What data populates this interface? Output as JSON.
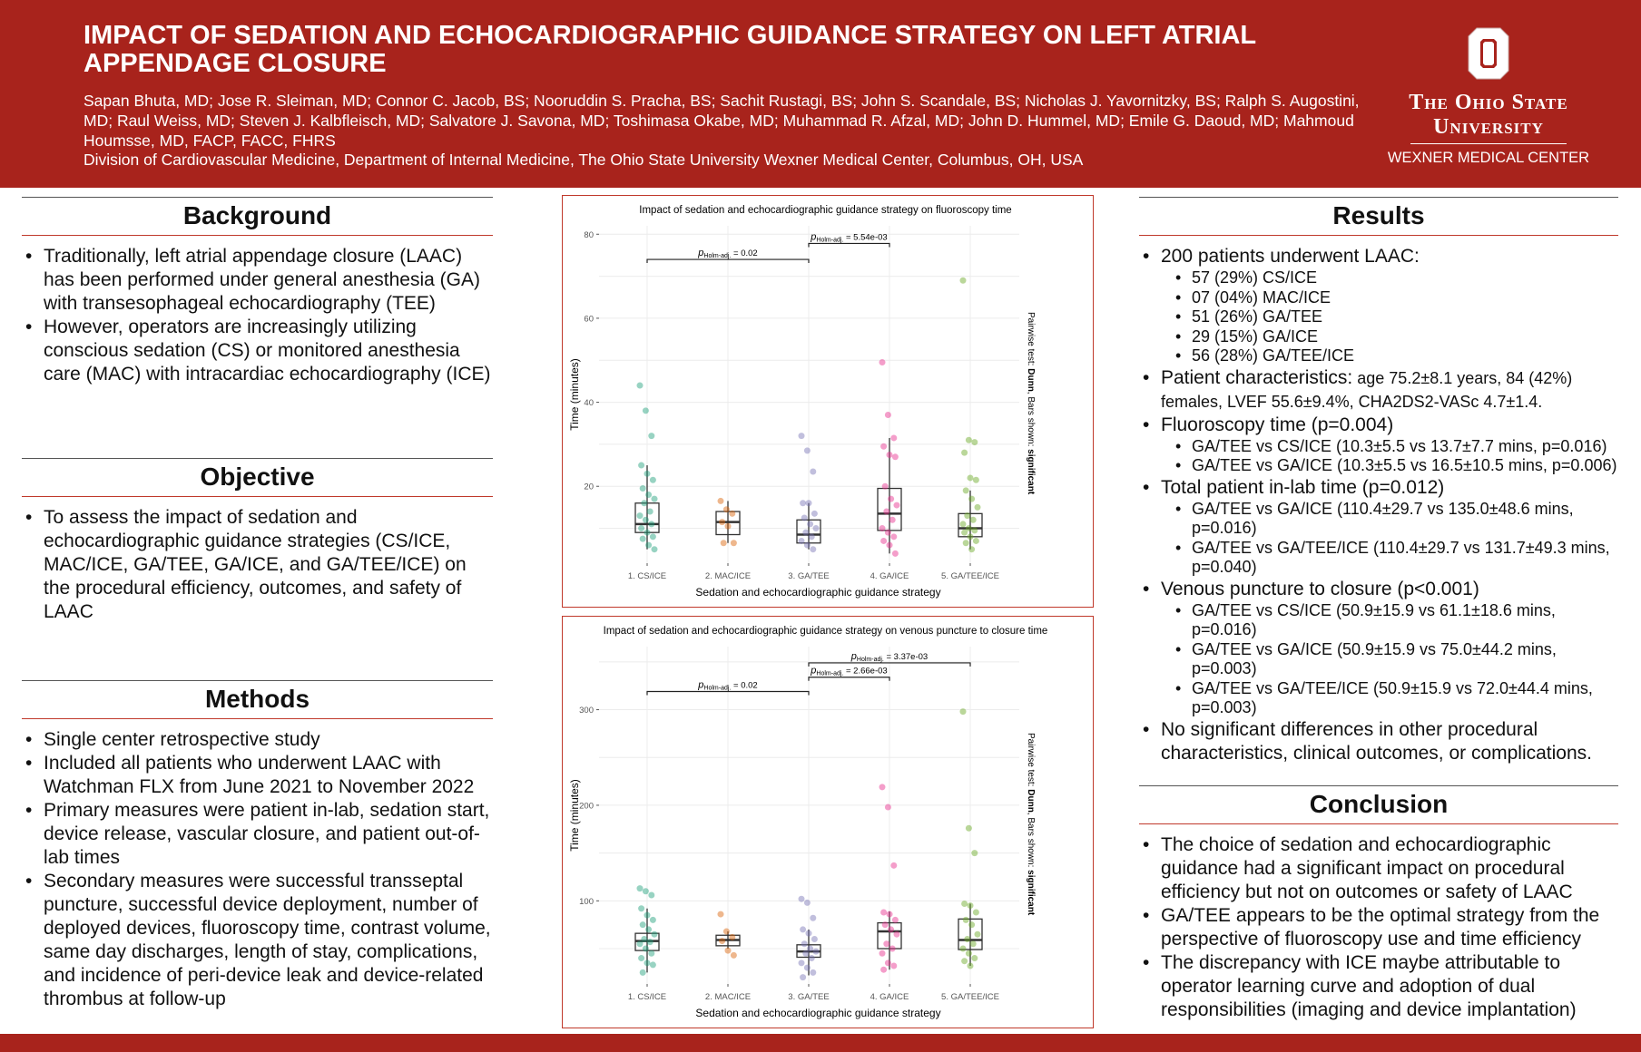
{
  "header": {
    "title": "IMPACT OF SEDATION AND ECHOCARDIOGRAPHIC GUIDANCE STRATEGY ON LEFT ATRIAL APPENDAGE CLOSURE",
    "authors": "Sapan Bhuta, MD; Jose R. Sleiman, MD; Connor C. Jacob, BS; Nooruddin S. Pracha, BS; Sachit Rustagi, BS; John S. Scandale, BS; Nicholas J. Yavornitzky, BS; Ralph S. Augostini, MD; Raul Weiss, MD; Steven J. Kalbfleisch, MD; Salvatore J. Savona, MD; Toshimasa Okabe, MD; Muhammad R. Afzal, MD; John D. Hummel, MD; Emile G. Daoud, MD; Mahmoud Houmsse, MD, FACP, FACC, FHRS",
    "affiliation": "Division of Cardiovascular Medicine, Department of Internal Medicine, The Ohio State University Wexner Medical Center, Columbus, OH, USA",
    "logo": {
      "line1": "The Ohio State",
      "line2": "University",
      "line3": "WEXNER MEDICAL CENTER"
    },
    "brand_color": "#A8231C"
  },
  "background": {
    "heading": "Background",
    "items": [
      "Traditionally, left atrial appendage closure (LAAC) has been performed under general anesthesia (GA) with transesophageal echocardiography (TEE)",
      "However, operators are increasingly utilizing conscious sedation (CS) or monitored anesthesia care (MAC) with intracardiac echocardiography (ICE)"
    ]
  },
  "objective": {
    "heading": "Objective",
    "items": [
      "To assess the impact of sedation and echocardiographic guidance strategies (CS/ICE, MAC/ICE, GA/TEE, GA/ICE, and GA/TEE/ICE) on the procedural efficiency, outcomes, and safety of LAAC"
    ]
  },
  "methods": {
    "heading": "Methods",
    "items": [
      "Single center retrospective study",
      "Included all patients who underwent LAAC with Watchman FLX from June 2021 to November 2022",
      "Primary measures were patient in-lab, sedation start, device release, vascular closure, and patient out-of-lab times",
      "Secondary measures were successful transseptal puncture, successful device deployment, number of deployed devices, fluoroscopy time, contrast volume, same day discharges, length of stay, complications, and incidence of peri-device leak and device-related thrombus at follow-up"
    ]
  },
  "results": {
    "heading": "Results",
    "items": [
      {
        "text": "200 patients underwent LAAC:",
        "sub": [
          "57 (29%) CS/ICE",
          "07 (04%) MAC/ICE",
          "51 (26%) GA/TEE",
          "29 (15%) GA/ICE",
          "56 (28%) GA/TEE/ICE"
        ]
      },
      {
        "text": "Patient characteristics:",
        "small": " age 75.2±8.1 years, 84 (42%) females, LVEF 55.6±9.4%, CHA2DS2-VASc 4.7±1.4.",
        "sub": []
      },
      {
        "text": "Fluoroscopy time (p=0.004)",
        "sub": [
          "GA/TEE vs CS/ICE (10.3±5.5 vs 13.7±7.7 mins, p=0.016)",
          "GA/TEE vs GA/ICE (10.3±5.5 vs 16.5±10.5 mins, p=0.006)"
        ]
      },
      {
        "text": "Total patient in-lab time (p=0.012)",
        "sub": [
          "GA/TEE vs GA/ICE (110.4±29.7 vs 135.0±48.6 mins, p=0.016)",
          "GA/TEE vs GA/TEE/ICE (110.4±29.7 vs 131.7±49.3 mins, p=0.040)"
        ]
      },
      {
        "text": "Venous puncture to closure (p<0.001)",
        "sub": [
          "GA/TEE vs CS/ICE (50.9±15.9 vs 61.1±18.6 mins, p=0.016)",
          "GA/TEE vs GA/ICE (50.9±15.9 vs 75.0±44.2 mins, p=0.003)",
          "GA/TEE vs GA/TEE/ICE (50.9±15.9 vs 72.0±44.4 mins, p=0.003)"
        ]
      },
      {
        "text": "No significant differences in other procedural characteristics, clinical outcomes, or complications.",
        "sub": []
      }
    ]
  },
  "conclusion": {
    "heading": "Conclusion",
    "items": [
      "The choice of sedation and echocardiographic guidance had a significant impact on procedural efficiency but not on outcomes or safety of LAAC",
      "GA/TEE appears to be the optimal strategy from the perspective of fluoroscopy use and time efficiency",
      "The discrepancy with ICE maybe attributable to operator learning curve and adoption of dual responsibilities (imaging and device implantation)"
    ]
  },
  "chart_data": [
    {
      "type": "box",
      "title": "Impact of sedation and echocardiographic guidance strategy on fluoroscopy time",
      "xlabel": "Sedation and echocardiographic guidance strategy",
      "ylabel": "Time (minutes)",
      "caption": {
        "prefix": "Pairwise test: ",
        "test": "Dunn",
        "mid": ", Bars shown: ",
        "bars": "significant"
      },
      "ylim": [
        1.7,
        82
      ],
      "yticks": [
        20,
        40,
        60,
        80
      ],
      "grid": true,
      "categories": [
        "1. CS/ICE",
        "2. MAC/ICE",
        "3. GA/TEE",
        "4. GA/ICE",
        "5. GA/TEE/ICE"
      ],
      "colors": [
        "#1B9E77",
        "#D95F02",
        "#7570B3",
        "#E7298A",
        "#66A61E"
      ],
      "boxes": [
        {
          "q1": 9,
          "median": 11,
          "q3": 16,
          "lo": 5,
          "hi": 25,
          "points": [
            44,
            38,
            32,
            25,
            23,
            21.5,
            19.5,
            18,
            17,
            16,
            14,
            13,
            12,
            11,
            10,
            9,
            8,
            7.5,
            6,
            5
          ]
        },
        {
          "q1": 8.5,
          "median": 11.5,
          "q3": 14,
          "lo": 6.5,
          "hi": 16.5,
          "points": [
            16.5,
            14.5,
            13.5,
            11.5,
            10.5,
            6.5,
            6.5
          ]
        },
        {
          "q1": 6.5,
          "median": 8.5,
          "q3": 12,
          "lo": 5,
          "hi": 16,
          "points": [
            32,
            28.5,
            23.5,
            16,
            16,
            13.5,
            12.5,
            11,
            10,
            9,
            8,
            7,
            6,
            5
          ]
        },
        {
          "q1": 9.5,
          "median": 13.5,
          "q3": 19.5,
          "lo": 4,
          "hi": 31.5,
          "points": [
            49.5,
            37,
            31.5,
            29.5,
            27.5,
            27,
            20,
            17,
            15.5,
            14,
            12,
            10,
            9,
            8,
            7,
            6,
            4
          ]
        },
        {
          "q1": 8,
          "median": 10,
          "q3": 13.5,
          "lo": 5,
          "hi": 19,
          "points": [
            69,
            31,
            30.5,
            28,
            22,
            21.5,
            19,
            17,
            15,
            13,
            12,
            11,
            10,
            9.5,
            9,
            8,
            7,
            6.5,
            5
          ]
        }
      ],
      "comparisons": [
        {
          "from": 0,
          "to": 2,
          "y": 74,
          "label": "Holm-adj.",
          "value": " = 0.02"
        },
        {
          "from": 2,
          "to": 3,
          "y": 77.8,
          "label": "Holm-adj.",
          "value": " = 5.54e-03"
        }
      ]
    },
    {
      "type": "box",
      "title": "Impact of sedation and echocardiographic guidance strategy on venous puncture to closure time",
      "xlabel": "Sedation and echocardiographic guidance strategy",
      "ylabel": "Time (minutes)",
      "caption": {
        "prefix": "Pairwise test: ",
        "test": "Dunn",
        "mid": ", Bars shown: ",
        "bars": "significant"
      },
      "ylim": [
        13,
        366
      ],
      "yticks": [
        100,
        200,
        300
      ],
      "grid": true,
      "categories": [
        "1. CS/ICE",
        "2. MAC/ICE",
        "3. GA/TEE",
        "4. GA/ICE",
        "5. GA/TEE/ICE"
      ],
      "colors": [
        "#1B9E77",
        "#D95F02",
        "#7570B3",
        "#E7298A",
        "#66A61E"
      ],
      "boxes": [
        {
          "q1": 48,
          "median": 58,
          "q3": 66,
          "lo": 25,
          "hi": 92,
          "points": [
            113,
            110,
            106,
            92,
            85,
            80,
            75,
            70,
            65,
            60,
            57,
            55,
            50,
            45,
            40,
            35,
            33,
            25
          ]
        },
        {
          "q1": 53,
          "median": 59,
          "q3": 64,
          "lo": 50,
          "hi": 68,
          "points": [
            86,
            68,
            62,
            58,
            48,
            43
          ]
        },
        {
          "q1": 41,
          "median": 47,
          "q3": 54,
          "lo": 22,
          "hi": 70,
          "points": [
            102,
            98,
            82,
            70,
            66,
            60,
            55,
            50,
            47,
            45,
            40,
            35,
            30,
            25,
            20
          ]
        },
        {
          "q1": 50,
          "median": 68,
          "q3": 77,
          "lo": 28,
          "hi": 89,
          "points": [
            219,
            198,
            137,
            88,
            86,
            80,
            75,
            70,
            65,
            55,
            50,
            45,
            35,
            32,
            28
          ]
        },
        {
          "q1": 49,
          "median": 59,
          "q3": 81,
          "lo": 32,
          "hi": 97,
          "points": [
            298,
            176,
            150,
            97,
            95,
            88,
            80,
            75,
            65,
            60,
            55,
            50,
            45,
            40,
            37,
            32
          ]
        }
      ],
      "comparisons": [
        {
          "from": 0,
          "to": 2,
          "y": 319,
          "label": "Holm-adj.",
          "value": " = 0.02"
        },
        {
          "from": 2,
          "to": 3,
          "y": 334,
          "label": "Holm-adj.",
          "value": " = 2.66e-03"
        },
        {
          "from": 2,
          "to": 4,
          "y": 349,
          "label": "Holm-adj.",
          "value": " = 3.37e-03"
        }
      ]
    }
  ]
}
